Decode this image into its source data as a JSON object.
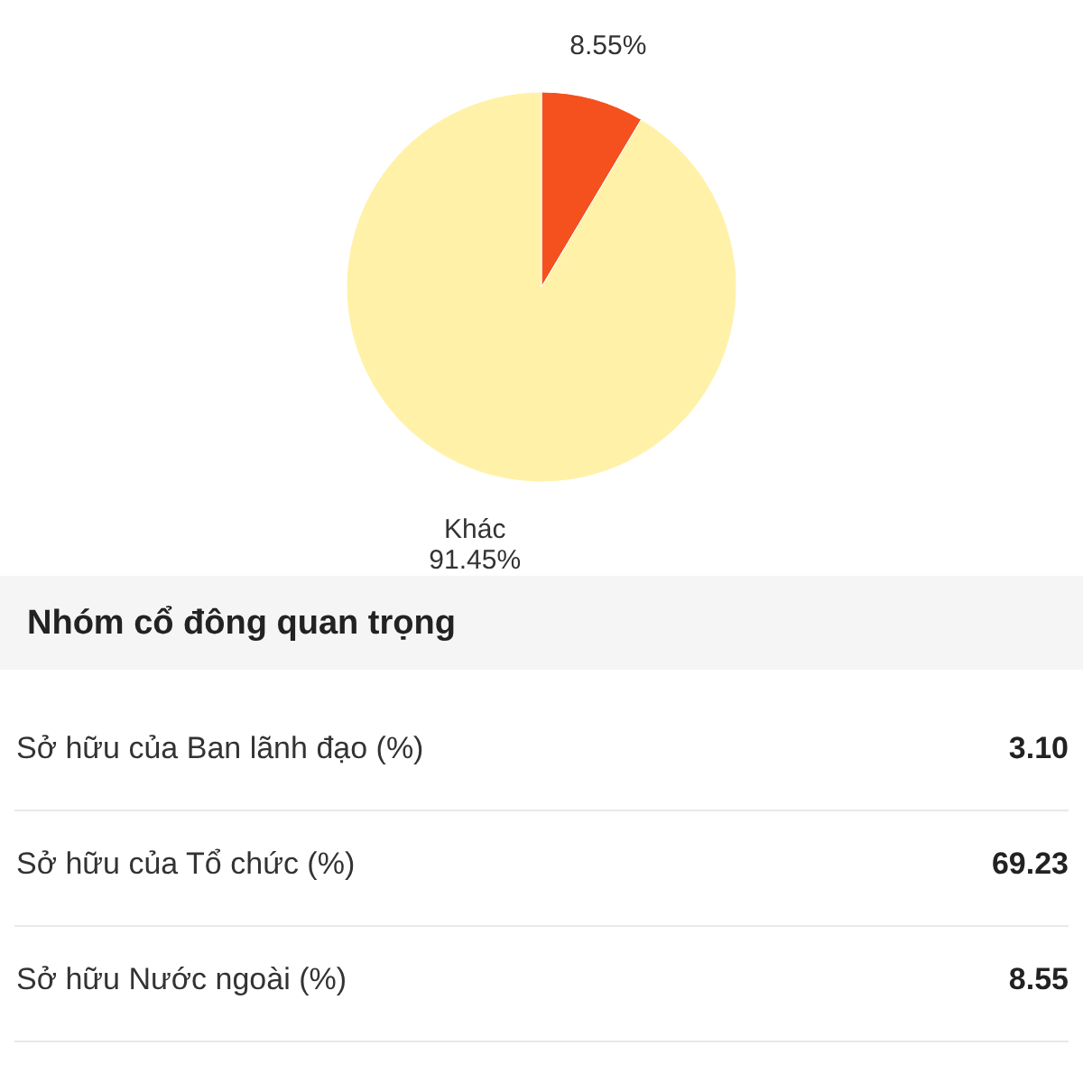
{
  "chart_data": [
    {
      "type": "pie",
      "categories": [
        null,
        "Khác"
      ],
      "values": [
        8.55,
        91.45
      ],
      "value_labels": [
        "8.55%",
        "91.45%"
      ],
      "colors": [
        "#f4511e",
        "#fff2a8"
      ]
    },
    {
      "type": "other",
      "title": "Nhóm cổ đông quan trọng",
      "categories": [
        "Sở hữu của Ban lãnh đạo (%)",
        "Sở hữu của Tổ chức (%)",
        "Sở hữu Nước ngoài (%)"
      ],
      "value_labels": [
        "3.10",
        "69.23",
        "8.55"
      ]
    }
  ]
}
